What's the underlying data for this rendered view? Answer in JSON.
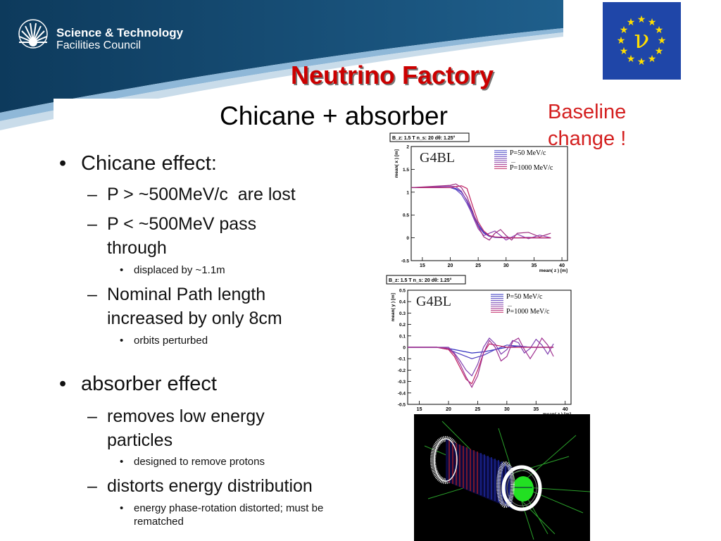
{
  "logo": {
    "line1": "Science & Technology",
    "line2": "Facilities Council"
  },
  "eu_flag": {
    "symbol": "ν"
  },
  "title": "Neutrino Factory",
  "subtitle": "Chicane + absorber",
  "baseline_note": {
    "line1": "Baseline",
    "line2": "change !"
  },
  "bullets": [
    {
      "text": "Chicane effect:",
      "level": 1,
      "children": [
        {
          "text": "P > ~500MeV/c  are lost",
          "level": 2
        },
        {
          "text": "P < ~500MeV pass through",
          "level": 2,
          "children": [
            {
              "text": "displaced by ~1.1m",
              "level": 3
            }
          ]
        },
        {
          "text": "Nominal Path length increased by only 8cm",
          "level": 2,
          "children": [
            {
              "text": "orbits perturbed",
              "level": 3
            }
          ]
        }
      ]
    },
    {
      "text": "absorber effect",
      "level": 1,
      "children": [
        {
          "text": "removes low energy particles",
          "level": 2,
          "children": [
            {
              "text": "designed to remove protons",
              "level": 3
            }
          ]
        },
        {
          "text": "distorts energy distribution",
          "level": 2,
          "children": [
            {
              "text": "energy phase-rotation distorted; must be rematched",
              "level": 3
            }
          ]
        }
      ]
    }
  ],
  "bullet_lines": {
    "b1": "Chicane effect:",
    "b1a": "P > ~500MeV/c  are lost",
    "b1b_l1": "P < ~500MeV pass",
    "b1b_l2": "through",
    "b1b_sub": "displaced by ~1.1m",
    "b1c_l1": "Nominal Path length",
    "b1c_l2": "increased by only 8cm",
    "b1c_sub": "orbits perturbed",
    "b2": "absorber effect",
    "b2a_l1": "removes low energy",
    "b2a_l2": "particles",
    "b2a_sub": "designed to remove protons",
    "b2b": "distorts energy distribution",
    "b2b_sub_l1": "energy phase-rotation distorted; must be",
    "b2b_sub_l2": "rematched"
  },
  "chart_data": [
    {
      "type": "line",
      "header": "B_z: 1.5 T n_s: 20 dθ: 1.25°",
      "watermark": "G4BL",
      "legend": [
        "P=50 MeV/c",
        "...",
        "P=1000 MeV/c"
      ],
      "xlabel": "mean( z ) [m]",
      "ylabel": "mean( x ) [m]",
      "xlim": [
        13,
        41
      ],
      "ylim": [
        -0.5,
        2
      ],
      "xticks": [
        15,
        20,
        25,
        30,
        35,
        40
      ],
      "yticks": [
        -0.5,
        0,
        0.5,
        1,
        1.5,
        2
      ],
      "series": [
        {
          "color": "#3030c0",
          "x": [
            13,
            20,
            21,
            22,
            23,
            24,
            25,
            26,
            27,
            28,
            30,
            32,
            34,
            36,
            38
          ],
          "y": [
            1.1,
            1.1,
            1.08,
            1.0,
            0.82,
            0.55,
            0.3,
            0.12,
            0.04,
            0.01,
            0.0,
            0.0,
            0.0,
            0.0,
            0.0
          ]
        },
        {
          "color": "#6040c0",
          "x": [
            13,
            20,
            21,
            22,
            23,
            24,
            25,
            26,
            27,
            28,
            30,
            32,
            34,
            36,
            38
          ],
          "y": [
            1.1,
            1.1,
            1.06,
            0.95,
            0.75,
            0.5,
            0.26,
            0.1,
            0.03,
            0.02,
            0.01,
            0.0,
            0.01,
            0.0,
            0.0
          ]
        },
        {
          "color": "#9040b0",
          "x": [
            13,
            20,
            21,
            22,
            23,
            24,
            25,
            26,
            27,
            28,
            29,
            30,
            32,
            34,
            36,
            38
          ],
          "y": [
            1.1,
            1.13,
            1.12,
            1.02,
            0.8,
            0.48,
            0.2,
            0.05,
            0.1,
            0.15,
            0.05,
            -0.05,
            0.08,
            -0.02,
            0.06,
            0.0
          ]
        },
        {
          "color": "#c02060",
          "x": [
            13,
            20,
            21,
            22,
            23,
            24,
            25,
            26,
            27,
            28,
            30,
            32,
            34,
            36,
            38
          ],
          "y": [
            1.1,
            1.1,
            1.12,
            1.14,
            1.08,
            0.7,
            0.35,
            0.15,
            0.05,
            0.02,
            0.0,
            0.0,
            0.0,
            0.0,
            0.0
          ]
        },
        {
          "color": "#a03080",
          "x": [
            13,
            20,
            21,
            22,
            23,
            24,
            25,
            26,
            27,
            28,
            29,
            30,
            31,
            32,
            34,
            36,
            38
          ],
          "y": [
            1.1,
            1.15,
            1.18,
            1.1,
            0.9,
            0.58,
            0.25,
            0.02,
            -0.05,
            0.1,
            0.18,
            0.05,
            -0.05,
            0.1,
            0.12,
            0.02,
            0.1
          ]
        }
      ]
    },
    {
      "type": "line",
      "header": "B_z: 1.5 T n_s: 20 dθ: 1.25°",
      "watermark": "G4BL",
      "legend": [
        "P=50 MeV/c",
        "...",
        "P=1000 MeV/c"
      ],
      "xlabel": "mean( z ) [m]",
      "ylabel": "mean( y ) [m]",
      "xlim": [
        13,
        41
      ],
      "ylim": [
        -0.5,
        0.5
      ],
      "xticks": [
        15,
        20,
        25,
        30,
        35,
        40
      ],
      "yticks": [
        -0.5,
        -0.4,
        -0.3,
        -0.2,
        -0.1,
        0,
        0.1,
        0.2,
        0.3,
        0.4,
        0.5
      ],
      "series": [
        {
          "color": "#3030c0",
          "x": [
            13,
            18,
            20,
            22,
            24,
            26,
            28,
            30,
            32,
            34,
            36,
            38
          ],
          "y": [
            0,
            0,
            -0.01,
            -0.03,
            -0.05,
            -0.04,
            -0.02,
            0.0,
            0.01,
            0.0,
            0.0,
            0.0
          ]
        },
        {
          "color": "#5040c0",
          "x": [
            13,
            18,
            20,
            22,
            24,
            26,
            28,
            30,
            32,
            34,
            36,
            38
          ],
          "y": [
            0,
            0,
            -0.02,
            -0.06,
            -0.1,
            -0.07,
            -0.02,
            0.02,
            0.01,
            0.0,
            0.0,
            0.0
          ]
        },
        {
          "color": "#8040b0",
          "x": [
            13,
            18,
            20,
            21,
            22,
            23,
            24,
            25,
            26,
            27,
            28,
            29,
            30,
            31,
            32,
            33,
            34,
            35,
            36,
            37,
            38
          ],
          "y": [
            0,
            0,
            0.0,
            -0.05,
            -0.12,
            -0.2,
            -0.25,
            -0.15,
            0.0,
            0.08,
            0.03,
            -0.06,
            -0.02,
            0.06,
            0.04,
            -0.05,
            -0.01,
            0.07,
            0.02,
            -0.06,
            0.03
          ]
        },
        {
          "color": "#c02060",
          "x": [
            13,
            18,
            20,
            21,
            22,
            23,
            24,
            25,
            26,
            27,
            28,
            30,
            32,
            34,
            36,
            38
          ],
          "y": [
            0,
            0,
            -0.02,
            -0.08,
            -0.18,
            -0.28,
            -0.32,
            -0.2,
            -0.05,
            0.03,
            0.02,
            0.0,
            0.0,
            0.0,
            0.0,
            0.0
          ]
        },
        {
          "color": "#a03090",
          "x": [
            13,
            18,
            20,
            21,
            22,
            23,
            24,
            25,
            26,
            27,
            28,
            29,
            30,
            31,
            32,
            33,
            34,
            35,
            36,
            37,
            38
          ],
          "y": [
            0,
            0,
            -0.01,
            -0.06,
            -0.15,
            -0.26,
            -0.35,
            -0.25,
            -0.05,
            0.06,
            0.0,
            -0.12,
            -0.08,
            0.05,
            0.08,
            -0.02,
            -0.1,
            -0.02,
            0.08,
            0.02,
            -0.08
          ]
        }
      ]
    }
  ]
}
